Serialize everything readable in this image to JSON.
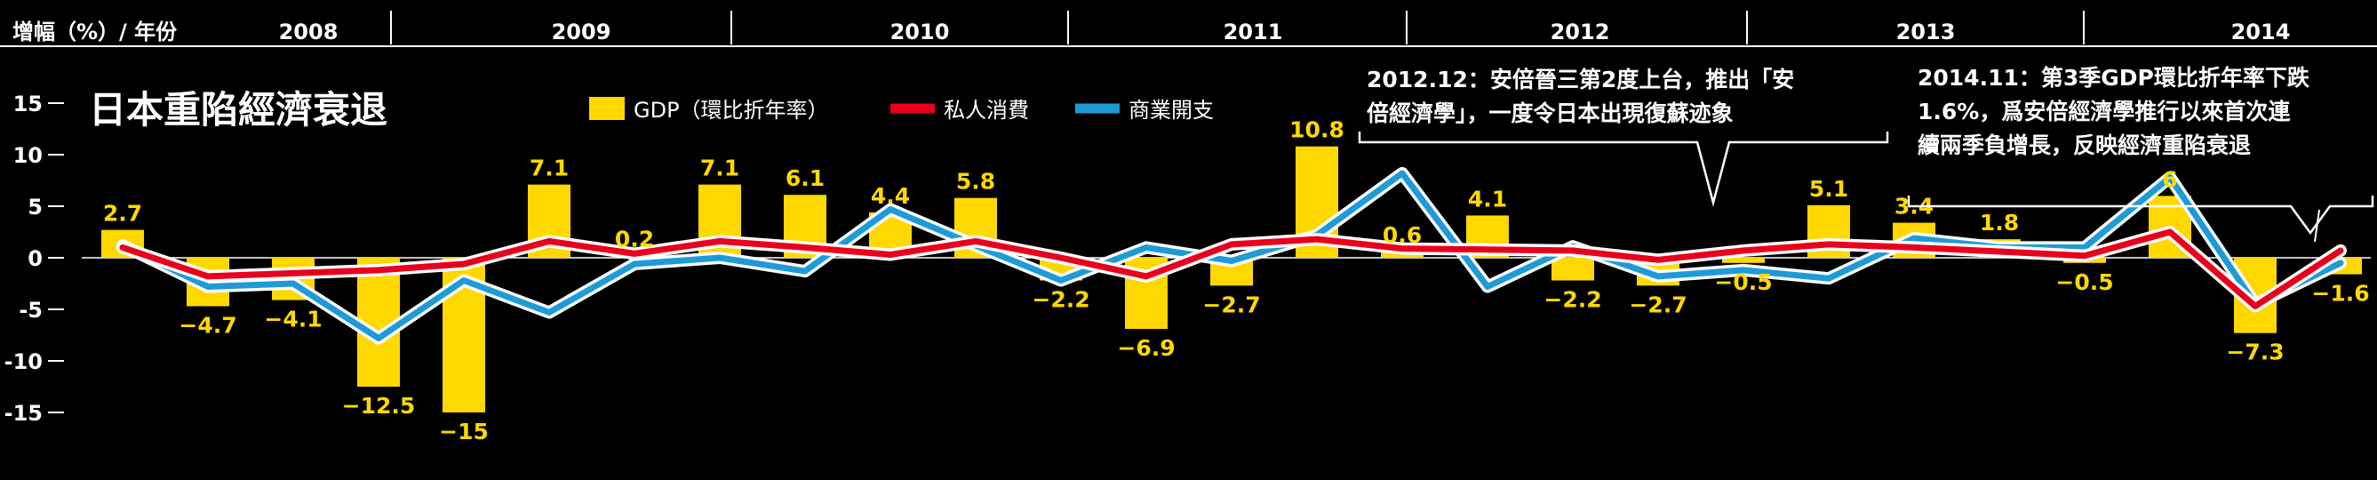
{
  "chart_data": {
    "type": "bar",
    "title": "日本重陷經濟衰退",
    "axis_header": "增幅（%）/ 年份",
    "ylim": [
      -15,
      15
    ],
    "yticks": [
      15,
      10,
      5,
      0,
      -5,
      -10,
      -15
    ],
    "ytick_labels": [
      "15",
      "10",
      "5",
      "0",
      "-5",
      "-10",
      "-15"
    ],
    "years": [
      "2008",
      "2009",
      "2010",
      "2011",
      "2012",
      "2013",
      "2014"
    ],
    "series": [
      {
        "name": "GDP（環比折年率）",
        "type": "bar",
        "color": "#FFD800",
        "values": [
          2.7,
          -4.7,
          -4.1,
          -12.5,
          -15,
          7.1,
          0.2,
          7.1,
          6.1,
          4.4,
          5.8,
          -2.2,
          -6.9,
          -2.7,
          10.8,
          0.6,
          4.1,
          -2.2,
          -2.7,
          -0.5,
          5.1,
          3.4,
          1.8,
          -0.5,
          6,
          -7.3,
          -1.6
        ],
        "labels": [
          "2.7",
          "−4.7",
          "−4.1",
          "−12.5",
          "−15",
          "7.1",
          "0.2",
          "7.1",
          "6.1",
          "4.4",
          "5.8",
          "−2.2",
          "−6.9",
          "−2.7",
          "10.8",
          "0.6",
          "4.1",
          "−2.2",
          "−2.7",
          "−0.5",
          "5.1",
          "3.4",
          "1.8",
          "−0.5",
          "6",
          "−7.3",
          "−1.6"
        ]
      },
      {
        "name": "私人消費",
        "type": "line",
        "color": "#E8001C",
        "values": [
          1.0,
          -1.8,
          -1.5,
          -1.2,
          -0.6,
          1.6,
          0.4,
          1.6,
          1.0,
          0.3,
          1.6,
          0.0,
          -1.8,
          1.3,
          1.8,
          0.9,
          0.8,
          0.7,
          -0.2,
          0.7,
          1.3,
          1.0,
          0.6,
          0.2,
          2.5,
          -4.7,
          0.7
        ]
      },
      {
        "name": "商業開支",
        "type": "line",
        "color": "#1E9BD7",
        "values": [
          1.2,
          -2.8,
          -2.5,
          -7.8,
          -2.2,
          -5.3,
          -0.6,
          0.0,
          -1.3,
          4.7,
          1.2,
          -2.2,
          1.0,
          -0.3,
          2.2,
          8.2,
          -2.8,
          1.1,
          -1.8,
          -1.2,
          -2.0,
          1.9,
          1.0,
          1.0,
          7.8,
          -4.5,
          -0.5
        ]
      }
    ],
    "annotations": [
      {
        "lines": [
          "2012.12：安倍晉三第2度上台，推出「安",
          "倍經濟學」，一度令日本出現復蘇迹象"
        ]
      },
      {
        "lines": [
          "2014.11：第3季GDP環比折年率下跌",
          "1.6%，爲安倍經濟學推行以來首次連",
          "續兩季負增長，反映經濟重陷衰退"
        ]
      }
    ],
    "grid": false,
    "legend_position": "top-center"
  }
}
